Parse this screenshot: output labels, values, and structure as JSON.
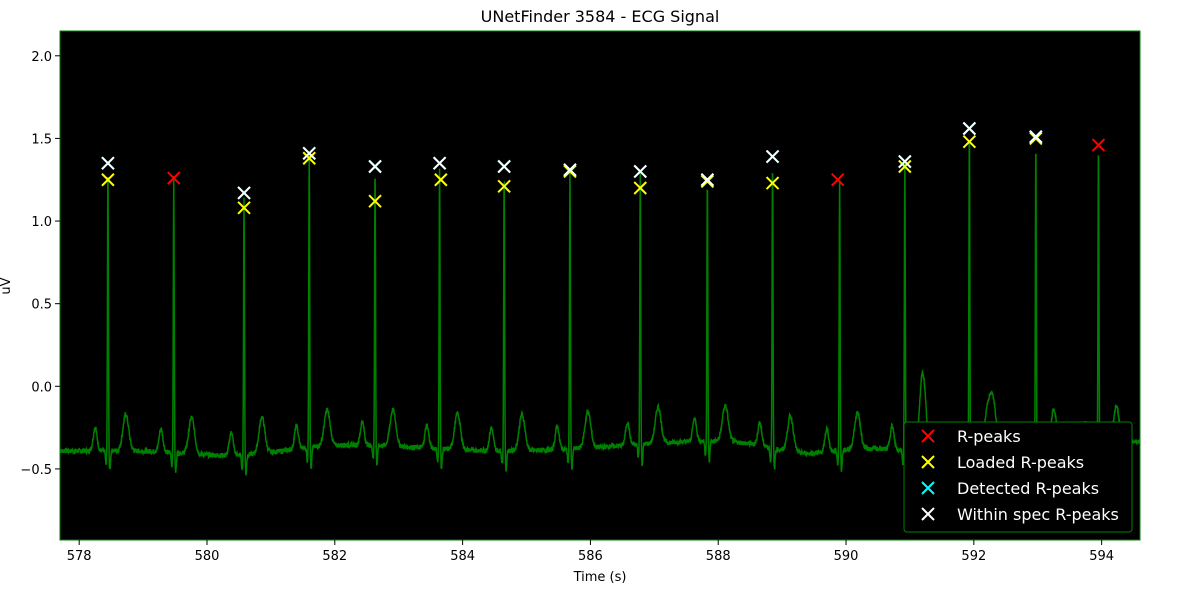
{
  "chart_data": {
    "type": "line",
    "title": "UNetFinder 3584 - ECG Signal",
    "xlabel": "Time (s)",
    "ylabel": "uV",
    "xlim": [
      577.7,
      594.6
    ],
    "ylim": [
      -0.93,
      2.15
    ],
    "xticks": [
      578,
      580,
      582,
      584,
      586,
      588,
      590,
      592,
      594
    ],
    "yticks": [
      -0.5,
      0.0,
      0.5,
      1.0,
      1.5,
      2.0
    ],
    "xtick_labels": [
      "578",
      "580",
      "582",
      "584",
      "586",
      "588",
      "590",
      "592",
      "594"
    ],
    "ytick_labels": [
      "−0.5",
      "0.0",
      "0.5",
      "1.0",
      "1.5",
      "2.0"
    ],
    "background": "#000000",
    "frame_color": "#008000",
    "signal": {
      "color": "#008000",
      "r_peaks_t": [
        578.45,
        579.48,
        580.58,
        581.6,
        582.63,
        583.64,
        584.65,
        585.68,
        586.78,
        587.83,
        588.85,
        589.9,
        590.92,
        591.93,
        592.97,
        593.95
      ],
      "r_peaks_amp": [
        1.33,
        1.26,
        1.15,
        1.4,
        1.32,
        1.32,
        1.31,
        1.3,
        1.29,
        1.24,
        1.37,
        1.25,
        1.34,
        1.55,
        1.49,
        1.46
      ]
    },
    "series": [
      {
        "name": "R-peaks",
        "color": "#ff0000",
        "marker": "x",
        "x": [
          579.48,
          589.87,
          593.95
        ],
        "y": [
          1.26,
          1.25,
          1.46
        ]
      },
      {
        "name": "Loaded R-peaks",
        "color": "#ffff00",
        "marker": "x",
        "x": [
          578.45,
          580.58,
          581.6,
          582.63,
          583.66,
          584.65,
          585.68,
          586.78,
          587.83,
          588.85,
          590.92,
          591.93,
          592.97
        ],
        "y": [
          1.25,
          1.08,
          1.38,
          1.12,
          1.25,
          1.21,
          1.3,
          1.2,
          1.24,
          1.23,
          1.33,
          1.48,
          1.5
        ]
      },
      {
        "name": "Detected R-peaks",
        "color": "#00ffff",
        "marker": "x",
        "x": [
          578.45,
          580.58,
          581.6,
          582.63,
          583.64,
          584.65,
          585.68,
          586.78,
          587.83,
          588.85,
          590.92,
          591.93,
          592.97
        ],
        "y": [
          1.35,
          1.17,
          1.41,
          1.33,
          1.35,
          1.33,
          1.31,
          1.3,
          1.25,
          1.39,
          1.36,
          1.56,
          1.51
        ]
      },
      {
        "name": "Within spec R-peaks",
        "color": "#ffffff",
        "marker": "x",
        "x": [
          578.45,
          580.58,
          581.6,
          582.63,
          583.64,
          584.65,
          585.68,
          586.78,
          587.83,
          588.85,
          590.92,
          591.93,
          592.97
        ],
        "y": [
          1.35,
          1.17,
          1.41,
          1.33,
          1.35,
          1.33,
          1.31,
          1.3,
          1.25,
          1.39,
          1.36,
          1.56,
          1.51
        ]
      }
    ],
    "legend": {
      "placement": "lower-right"
    }
  }
}
